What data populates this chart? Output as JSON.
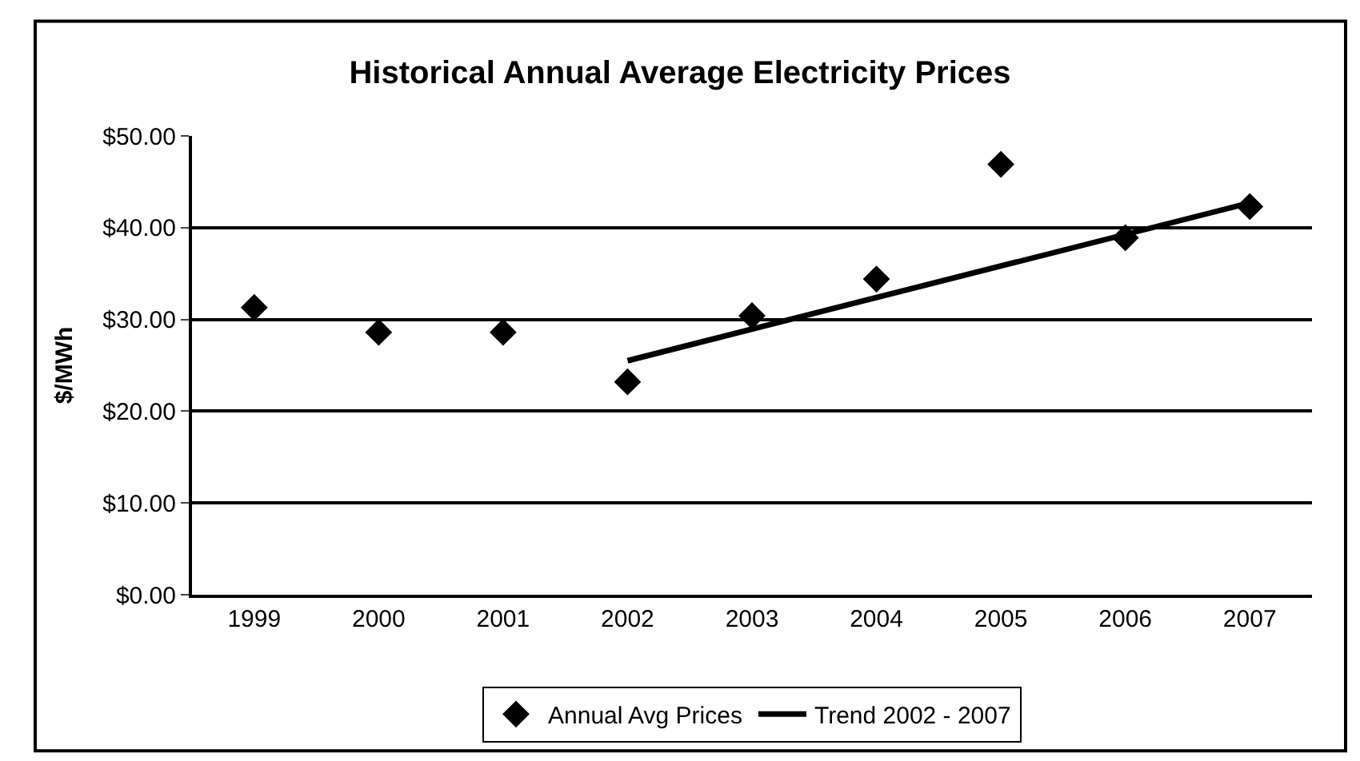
{
  "chart_data": {
    "type": "scatter",
    "title": "Historical Annual Average Electricity Prices",
    "ylabel": "$/MWh",
    "categories": [
      "1999",
      "2000",
      "2001",
      "2002",
      "2003",
      "2004",
      "2005",
      "2006",
      "2007"
    ],
    "series": [
      {
        "name": "Annual Avg Prices",
        "color": "#000000",
        "marker": "diamond",
        "values": [
          31.3,
          28.6,
          28.6,
          23.2,
          30.4,
          34.4,
          46.9,
          38.9,
          42.3
        ]
      },
      {
        "name": "Trend 2002 - 2007",
        "color": "#000000",
        "type": "line",
        "marker": "none",
        "values": [
          null,
          null,
          null,
          25.5,
          null,
          null,
          null,
          null,
          42.7
        ]
      }
    ],
    "ylim": [
      0,
      50
    ],
    "yticks": [
      {
        "value": 0,
        "label": "$0.00"
      },
      {
        "value": 10,
        "label": "$10.00"
      },
      {
        "value": 20,
        "label": "$20.00"
      },
      {
        "value": 30,
        "label": "$30.00"
      },
      {
        "value": 40,
        "label": "$40.00"
      },
      {
        "value": 50,
        "label": "$50.00"
      }
    ],
    "grid": "y",
    "legend": "bottom"
  }
}
